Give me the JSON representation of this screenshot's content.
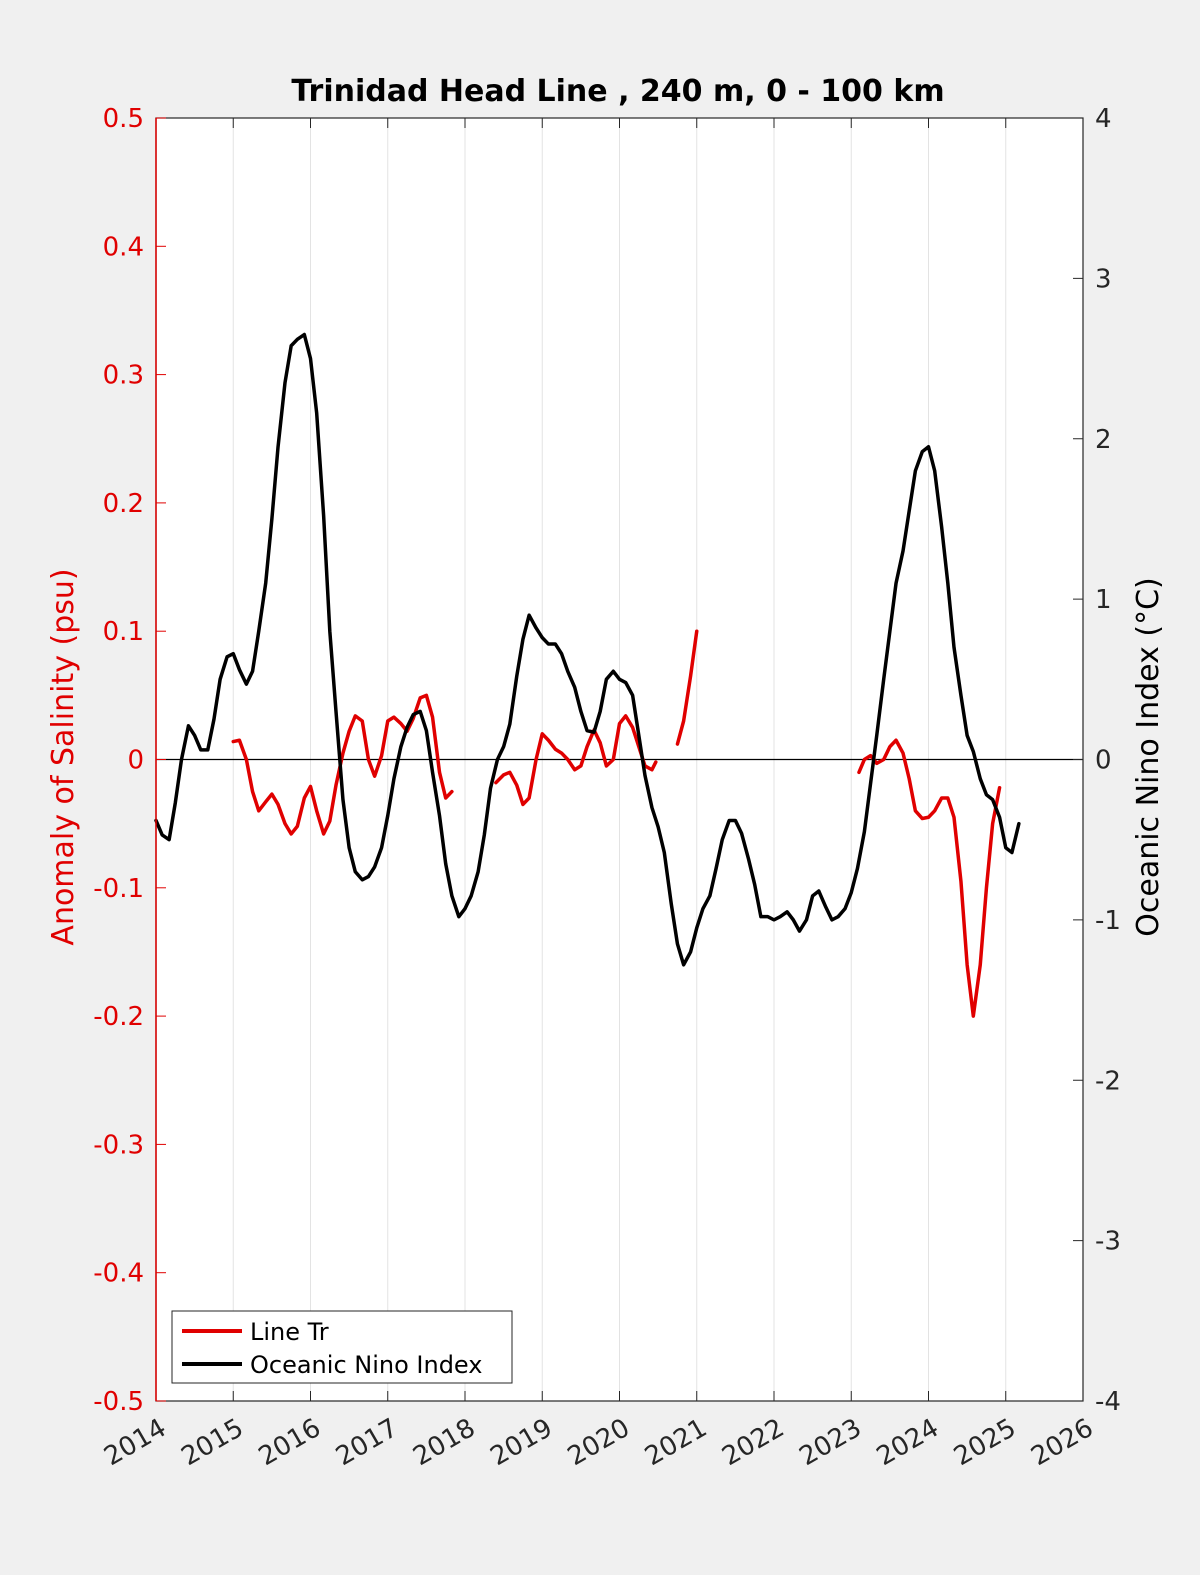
{
  "chart_data": {
    "type": "line",
    "title": "Trinidad Head Line , 240 m, 0 - 100 km",
    "ylabel_left": "Anomaly of Salinity (psu)",
    "ylabel_right": "Oceanic Nino Index (°C)",
    "xlim": [
      2014,
      2026
    ],
    "ylim_left": [
      -0.5,
      0.5
    ],
    "ylim_right": [
      -4,
      4
    ],
    "x_ticks": [
      "2014",
      "2015",
      "2016",
      "2017",
      "2018",
      "2019",
      "2020",
      "2021",
      "2022",
      "2023",
      "2024",
      "2025",
      "2026"
    ],
    "y_left_ticks": [
      "-0.5",
      "-0.4",
      "-0.3",
      "-0.2",
      "-0.1",
      "0",
      "0.1",
      "0.2",
      "0.3",
      "0.4",
      "0.5"
    ],
    "y_right_ticks": [
      "-4",
      "-3",
      "-2",
      "-1",
      "0",
      "1",
      "2",
      "3",
      "4"
    ],
    "grid": "vertical",
    "zero_line": true,
    "legend_position": "bottom-left",
    "colors": {
      "salinity": "#e00000",
      "oni": "#000000",
      "left_axis": "#e00000",
      "right_axis": "#000000"
    },
    "series": [
      {
        "name": "Line Tr",
        "axis": "left",
        "segments": [
          [
            [
              2015.0,
              0.014
            ],
            [
              2015.08,
              0.015
            ],
            [
              2015.17,
              0.0
            ],
            [
              2015.25,
              -0.025
            ],
            [
              2015.33,
              -0.04
            ],
            [
              2015.42,
              -0.033
            ],
            [
              2015.5,
              -0.027
            ],
            [
              2015.58,
              -0.035
            ],
            [
              2015.67,
              -0.05
            ],
            [
              2015.75,
              -0.058
            ],
            [
              2015.83,
              -0.052
            ],
            [
              2015.92,
              -0.03
            ],
            [
              2016.0,
              -0.021
            ],
            [
              2016.08,
              -0.04
            ],
            [
              2016.17,
              -0.058
            ],
            [
              2016.25,
              -0.048
            ],
            [
              2016.33,
              -0.02
            ],
            [
              2016.42,
              0.005
            ],
            [
              2016.5,
              0.022
            ],
            [
              2016.58,
              0.034
            ],
            [
              2016.67,
              0.03
            ],
            [
              2016.75,
              0.0
            ],
            [
              2016.83,
              -0.013
            ],
            [
              2016.92,
              0.003
            ],
            [
              2017.0,
              0.03
            ],
            [
              2017.08,
              0.033
            ],
            [
              2017.17,
              0.028
            ],
            [
              2017.25,
              0.022
            ],
            [
              2017.33,
              0.032
            ],
            [
              2017.42,
              0.048
            ],
            [
              2017.5,
              0.05
            ],
            [
              2017.58,
              0.033
            ],
            [
              2017.67,
              -0.01
            ],
            [
              2017.75,
              -0.03
            ],
            [
              2017.83,
              -0.025
            ]
          ],
          [
            [
              2018.4,
              -0.018
            ],
            [
              2018.5,
              -0.012
            ],
            [
              2018.58,
              -0.01
            ],
            [
              2018.67,
              -0.02
            ],
            [
              2018.75,
              -0.035
            ],
            [
              2018.83,
              -0.03
            ],
            [
              2018.92,
              0.0
            ],
            [
              2019.0,
              0.02
            ],
            [
              2019.08,
              0.015
            ],
            [
              2019.17,
              0.008
            ],
            [
              2019.25,
              0.005
            ],
            [
              2019.33,
              0.0
            ],
            [
              2019.42,
              -0.008
            ],
            [
              2019.5,
              -0.005
            ],
            [
              2019.58,
              0.01
            ],
            [
              2019.67,
              0.023
            ],
            [
              2019.75,
              0.013
            ],
            [
              2019.83,
              -0.005
            ],
            [
              2019.92,
              0.0
            ],
            [
              2020.0,
              0.028
            ],
            [
              2020.08,
              0.034
            ],
            [
              2020.17,
              0.025
            ],
            [
              2020.25,
              0.01
            ],
            [
              2020.33,
              -0.005
            ],
            [
              2020.42,
              -0.008
            ],
            [
              2020.47,
              -0.002
            ]
          ],
          [
            [
              2020.75,
              0.012
            ],
            [
              2020.83,
              0.03
            ],
            [
              2020.92,
              0.065
            ],
            [
              2021.0,
              0.1
            ]
          ],
          [
            [
              2023.1,
              -0.01
            ],
            [
              2023.17,
              0.0
            ],
            [
              2023.25,
              0.003
            ],
            [
              2023.33,
              -0.003
            ],
            [
              2023.42,
              0.0
            ],
            [
              2023.5,
              0.01
            ],
            [
              2023.58,
              0.015
            ],
            [
              2023.67,
              0.005
            ],
            [
              2023.75,
              -0.015
            ],
            [
              2023.83,
              -0.04
            ],
            [
              2023.92,
              -0.046
            ],
            [
              2024.0,
              -0.045
            ],
            [
              2024.08,
              -0.04
            ],
            [
              2024.17,
              -0.03
            ],
            [
              2024.25,
              -0.03
            ],
            [
              2024.33,
              -0.045
            ],
            [
              2024.42,
              -0.095
            ],
            [
              2024.5,
              -0.16
            ],
            [
              2024.58,
              -0.2
            ],
            [
              2024.67,
              -0.16
            ],
            [
              2024.75,
              -0.1
            ],
            [
              2024.83,
              -0.05
            ],
            [
              2024.92,
              -0.022
            ]
          ]
        ]
      },
      {
        "name": "Oceanic Nino Index",
        "axis": "right",
        "segments": [
          [
            [
              2014.0,
              -0.38
            ],
            [
              2014.08,
              -0.47
            ],
            [
              2014.17,
              -0.5
            ],
            [
              2014.25,
              -0.27
            ],
            [
              2014.33,
              0.0
            ],
            [
              2014.42,
              0.21
            ],
            [
              2014.5,
              0.15
            ],
            [
              2014.58,
              0.06
            ],
            [
              2014.67,
              0.06
            ],
            [
              2014.75,
              0.25
            ],
            [
              2014.83,
              0.5
            ],
            [
              2014.92,
              0.64
            ],
            [
              2015.0,
              0.66
            ],
            [
              2015.08,
              0.56
            ],
            [
              2015.17,
              0.47
            ],
            [
              2015.25,
              0.55
            ],
            [
              2015.33,
              0.8
            ],
            [
              2015.42,
              1.1
            ],
            [
              2015.5,
              1.5
            ],
            [
              2015.58,
              1.95
            ],
            [
              2015.67,
              2.35
            ],
            [
              2015.75,
              2.58
            ],
            [
              2015.83,
              2.62
            ],
            [
              2015.92,
              2.65
            ],
            [
              2016.0,
              2.5
            ],
            [
              2016.08,
              2.16
            ],
            [
              2016.17,
              1.52
            ],
            [
              2016.25,
              0.8
            ],
            [
              2016.33,
              0.3
            ],
            [
              2016.42,
              -0.25
            ],
            [
              2016.5,
              -0.55
            ],
            [
              2016.58,
              -0.7
            ],
            [
              2016.67,
              -0.75
            ],
            [
              2016.75,
              -0.73
            ],
            [
              2016.83,
              -0.67
            ],
            [
              2016.92,
              -0.55
            ],
            [
              2017.0,
              -0.35
            ],
            [
              2017.08,
              -0.12
            ],
            [
              2017.17,
              0.08
            ],
            [
              2017.25,
              0.2
            ],
            [
              2017.33,
              0.28
            ],
            [
              2017.42,
              0.3
            ],
            [
              2017.5,
              0.18
            ],
            [
              2017.58,
              -0.08
            ],
            [
              2017.67,
              -0.35
            ],
            [
              2017.75,
              -0.65
            ],
            [
              2017.83,
              -0.85
            ],
            [
              2017.92,
              -0.98
            ],
            [
              2018.0,
              -0.93
            ],
            [
              2018.08,
              -0.85
            ],
            [
              2018.17,
              -0.7
            ],
            [
              2018.25,
              -0.47
            ],
            [
              2018.33,
              -0.18
            ],
            [
              2018.42,
              0.0
            ],
            [
              2018.5,
              0.08
            ],
            [
              2018.58,
              0.22
            ],
            [
              2018.67,
              0.52
            ],
            [
              2018.75,
              0.75
            ],
            [
              2018.83,
              0.9
            ],
            [
              2018.92,
              0.82
            ],
            [
              2019.0,
              0.76
            ],
            [
              2019.08,
              0.72
            ],
            [
              2019.17,
              0.72
            ],
            [
              2019.25,
              0.66
            ],
            [
              2019.33,
              0.55
            ],
            [
              2019.42,
              0.45
            ],
            [
              2019.5,
              0.3
            ],
            [
              2019.58,
              0.18
            ],
            [
              2019.67,
              0.17
            ],
            [
              2019.75,
              0.3
            ],
            [
              2019.83,
              0.5
            ],
            [
              2019.92,
              0.55
            ],
            [
              2020.0,
              0.5
            ],
            [
              2020.08,
              0.48
            ],
            [
              2020.17,
              0.4
            ],
            [
              2020.25,
              0.15
            ],
            [
              2020.33,
              -0.1
            ],
            [
              2020.42,
              -0.3
            ],
            [
              2020.5,
              -0.42
            ],
            [
              2020.58,
              -0.58
            ],
            [
              2020.67,
              -0.9
            ],
            [
              2020.75,
              -1.15
            ],
            [
              2020.83,
              -1.28
            ],
            [
              2020.92,
              -1.2
            ],
            [
              2021.0,
              -1.05
            ],
            [
              2021.08,
              -0.93
            ],
            [
              2021.17,
              -0.85
            ],
            [
              2021.25,
              -0.68
            ],
            [
              2021.33,
              -0.5
            ],
            [
              2021.42,
              -0.38
            ],
            [
              2021.5,
              -0.38
            ],
            [
              2021.58,
              -0.46
            ],
            [
              2021.67,
              -0.62
            ],
            [
              2021.75,
              -0.78
            ],
            [
              2021.83,
              -0.98
            ],
            [
              2021.92,
              -0.98
            ],
            [
              2022.0,
              -1.0
            ],
            [
              2022.08,
              -0.98
            ],
            [
              2022.17,
              -0.95
            ],
            [
              2022.25,
              -1.0
            ],
            [
              2022.33,
              -1.07
            ],
            [
              2022.42,
              -1.0
            ],
            [
              2022.5,
              -0.85
            ],
            [
              2022.58,
              -0.82
            ],
            [
              2022.67,
              -0.92
            ],
            [
              2022.75,
              -1.0
            ],
            [
              2022.83,
              -0.98
            ],
            [
              2022.92,
              -0.93
            ],
            [
              2023.0,
              -0.83
            ],
            [
              2023.08,
              -0.68
            ],
            [
              2023.17,
              -0.45
            ],
            [
              2023.25,
              -0.15
            ],
            [
              2023.33,
              0.15
            ],
            [
              2023.42,
              0.5
            ],
            [
              2023.5,
              0.8
            ],
            [
              2023.58,
              1.1
            ],
            [
              2023.67,
              1.3
            ],
            [
              2023.75,
              1.55
            ],
            [
              2023.83,
              1.8
            ],
            [
              2023.92,
              1.92
            ],
            [
              2024.0,
              1.95
            ],
            [
              2024.08,
              1.8
            ],
            [
              2024.17,
              1.45
            ],
            [
              2024.25,
              1.1
            ],
            [
              2024.33,
              0.7
            ],
            [
              2024.42,
              0.4
            ],
            [
              2024.5,
              0.15
            ],
            [
              2024.58,
              0.05
            ],
            [
              2024.67,
              -0.12
            ],
            [
              2024.75,
              -0.22
            ],
            [
              2024.83,
              -0.25
            ],
            [
              2024.92,
              -0.36
            ],
            [
              2025.0,
              -0.55
            ],
            [
              2025.08,
              -0.58
            ],
            [
              2025.17,
              -0.4
            ]
          ]
        ]
      }
    ]
  }
}
